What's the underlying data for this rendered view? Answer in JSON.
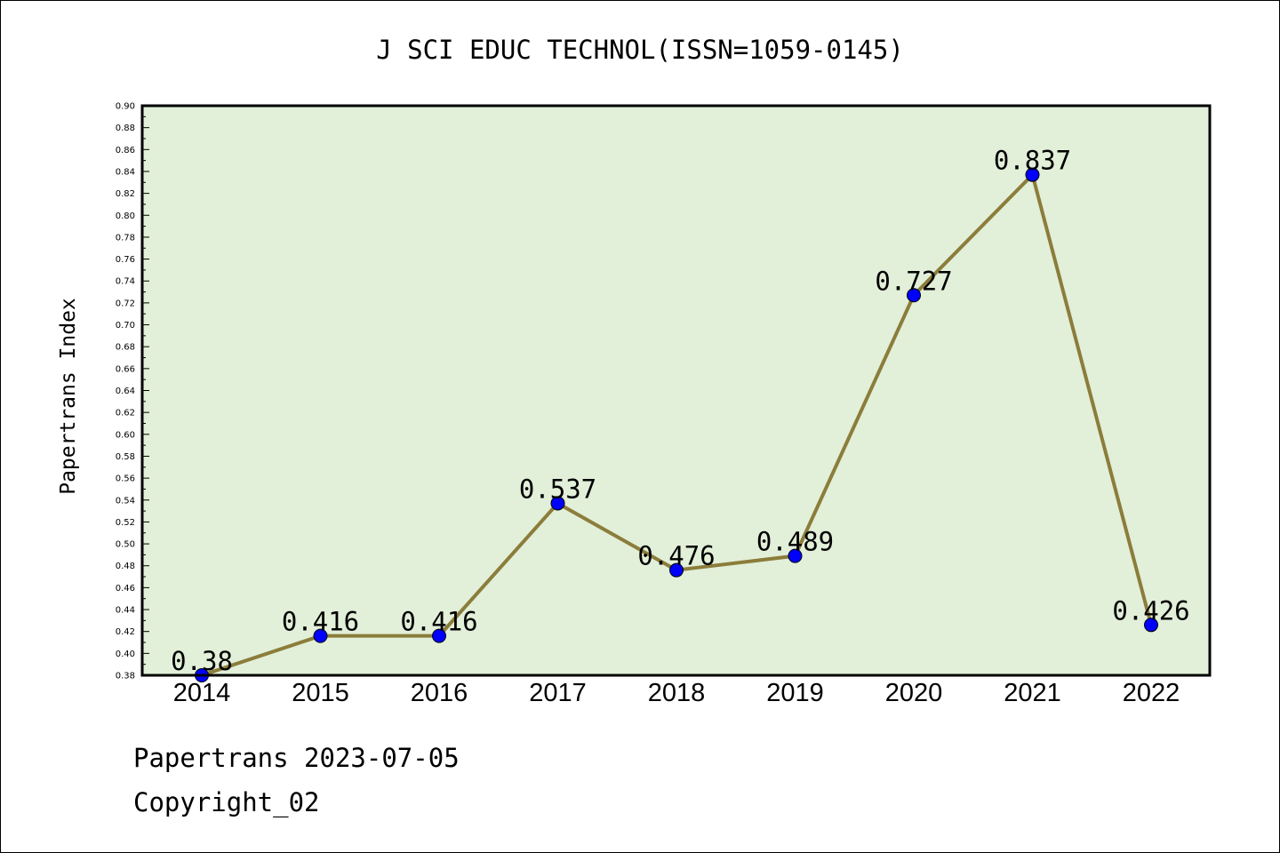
{
  "chart_data": {
    "type": "line",
    "title": "J SCI EDUC TECHNOL(ISSN=1059-0145)",
    "xlabel": "",
    "ylabel": "Papertrans Index",
    "categories": [
      "2014",
      "2015",
      "2016",
      "2017",
      "2018",
      "2019",
      "2020",
      "2021",
      "2022"
    ],
    "series": [
      {
        "values": [
          0.38,
          0.416,
          0.416,
          0.537,
          0.476,
          0.489,
          0.727,
          0.837,
          0.426
        ],
        "data_labels": [
          "0.38",
          "0.416",
          "0.416",
          "0.537",
          "0.476",
          "0.489",
          "0.727",
          "0.837",
          "0.426"
        ]
      }
    ],
    "ylim": [
      0.38,
      0.9
    ],
    "yticks": [
      "0.38",
      "0.40",
      "0.42",
      "0.44",
      "0.46",
      "0.48",
      "0.50",
      "0.52",
      "0.54",
      "0.56",
      "0.58",
      "0.60",
      "0.62",
      "0.64",
      "0.66",
      "0.68",
      "0.70",
      "0.72",
      "0.74",
      "0.76",
      "0.78",
      "0.80",
      "0.82",
      "0.84",
      "0.86",
      "0.88",
      "0.90"
    ],
    "grid": false,
    "colors": {
      "plot_background": "#e2efd9",
      "line": "#8b7d3a",
      "marker": "#0000ff"
    }
  },
  "footer": {
    "line1": "Papertrans 2023-07-05",
    "line2": "Copyright_02"
  }
}
